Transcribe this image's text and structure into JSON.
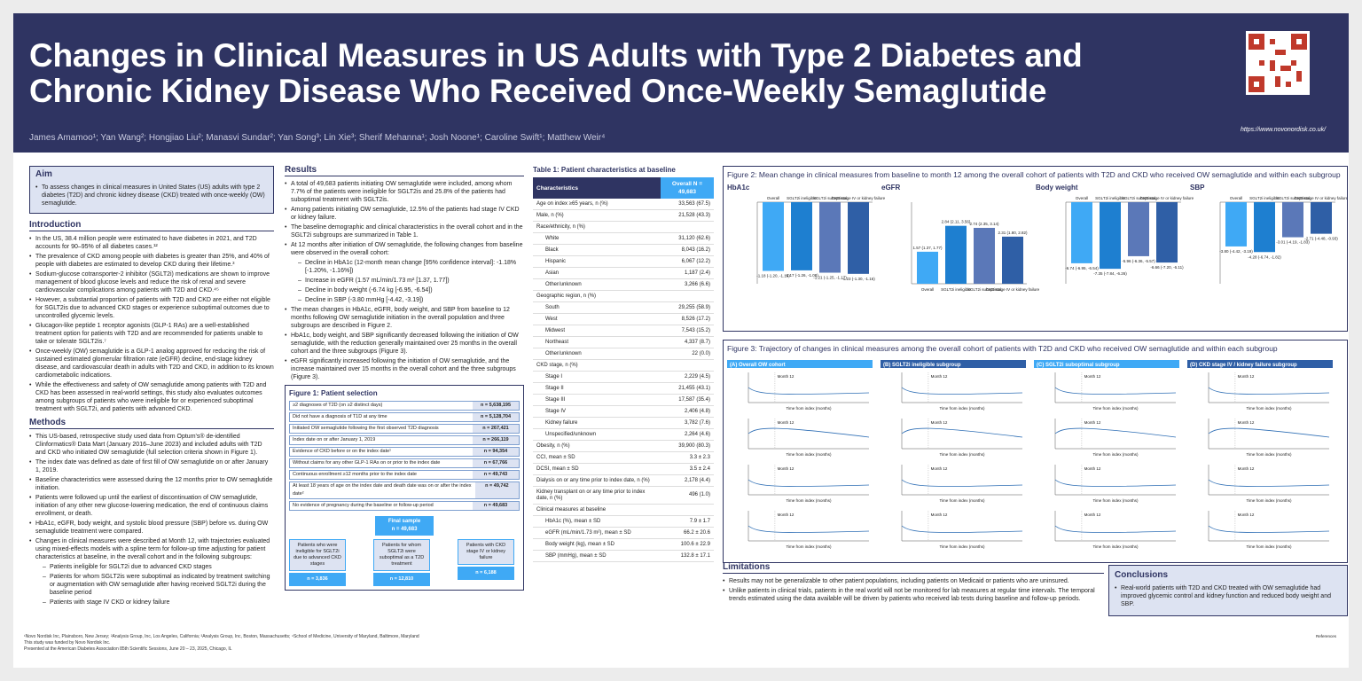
{
  "header": {
    "title": "Changes in Clinical Measures in US Adults with Type 2 Diabetes and Chronic Kidney Disease Who Received Once-Weekly Semaglutide",
    "authors": "James Amamoo¹; Yan Wang²; Hongjiao Liu²; Manasvi Sundar²; Yan Song³; Lin Xie³; Sherif Mehanna¹; Josh Noone¹; Caroline Swift¹; Matthew Weir⁴",
    "url": "https://www.novonordisk.co.uk/"
  },
  "aim": {
    "title": "Aim",
    "text": "To assess changes in clinical measures in United States (US) adults with type 2 diabetes (T2D) and chronic kidney disease (CKD) treated with once-weekly (OW) semaglutide."
  },
  "intro": {
    "title": "Introduction",
    "bullets": [
      "In the US, 38.4 million people were estimated to have diabetes in 2021, and T2D accounts for 90–95% of all diabetes cases.¹²",
      "The prevalence of CKD among people with diabetes is greater than 25%, and 40% of people with diabetes are estimated to develop CKD during their lifetime.³",
      "Sodium-glucose cotransporter-2 inhibitor (SGLT2i) medications are shown to improve management of blood glucose levels and reduce the risk of renal and severe cardiovascular complications among patients with T2D and CKD.⁴⁵",
      "However, a substantial proportion of patients with T2D and CKD are either not eligible for SGLT2is due to advanced CKD stages or experience suboptimal outcomes due to uncontrolled glycemic levels.",
      "Glucagon-like peptide 1 receptor agonists (GLP-1 RAs) are a well-established treatment option for patients with T2D and are recommended for patients unable to take or tolerate SGLT2is.⁷",
      "Once-weekly (OW) semaglutide is a GLP-1 analog approved for reducing the risk of sustained estimated glomerular filtration rate (eGFR) decline, end-stage kidney disease, and cardiovascular death in adults with T2D and CKD, in addition to its known cardiometabolic indications.",
      "While the effectiveness and safety of OW semaglutide among patients with T2D and CKD has been assessed in real-world settings, this study also evaluates outcomes among subgroups of patients who were ineligible for or experienced suboptimal treatment with SGLT2i, and patients with advanced CKD."
    ]
  },
  "methods": {
    "title": "Methods",
    "bullets": [
      "This US-based, retrospective study used data from Optum's® de-identified Clinformatics® Data Mart (January 2016–June 2023) and included adults with T2D and CKD who initiated OW semaglutide (full selection criteria shown in Figure 1).",
      "The index date was defined as date of first fill of OW semaglutide on or after January 1, 2019.",
      "Baseline characteristics were assessed during the 12 months prior to OW semaglutide initiation.",
      "Patients were followed up until the earliest of discontinuation of OW semaglutide, initiation of any other new glucose-lowering medication, the end of continuous claims enrollment, or death.",
      "HbA1c, eGFR, body weight, and systolic blood pressure (SBP) before vs. during OW semaglutide treatment were compared.",
      "Changes in clinical measures were described at Month 12, with trajectories evaluated using mixed-effects models with a spline term for follow-up time adjusting for patient characteristics at baseline, in the overall cohort and in the following subgroups:"
    ],
    "sub": [
      "Patients ineligible for SGLT2i due to advanced CKD stages",
      "Patients for whom SGLT2is were suboptimal as indicated by treatment switching or augmentation with OW semaglutide after having received SGLT2i during the baseline period",
      "Patients with stage IV CKD or kidney failure"
    ]
  },
  "results": {
    "title": "Results",
    "bullets": [
      "A total of 49,683 patients initiating OW semaglutide were included, among whom 7.7% of the patients were ineligible for SGLT2is and 25.8% of the patients had suboptimal treatment with SGLT2is.",
      "Among patients initiating OW semaglutide, 12.5% of the patients had stage IV CKD or kidney failure.",
      "The baseline demographic and clinical characteristics in the overall cohort and in the SGLT2i subgroups are summarized in Table 1.",
      "At 12 months after initiation of OW semaglutide, the following changes from baseline were observed in the overall cohort:"
    ],
    "sub": [
      "Decline in HbA1c (12-month mean change [95% confidence interval]: -1.18% [-1.20%, -1.16%])",
      "Increase in eGFR (1.57 mL/min/1.73 m² [1.37, 1.77])",
      "Decline in body weight (-6.74 kg [-6.95, -6.54])",
      "Decline in SBP (-3.80 mmHg [-4.42, -3.19])"
    ],
    "bullets2": [
      "The mean changes in HbA1c, eGFR, body weight, and SBP from baseline to 12 months following OW semaglutide initiation in the overall population and three subgroups are described in Figure 2.",
      "HbA1c, body weight, and SBP significantly decreased following the initiation of OW semaglutide, with the reduction generally maintained over 25 months in the overall cohort and the three subgroups (Figure 3).",
      "eGFR significantly increased following the initiation of OW semaglutide, and the increase maintained over 15 months in the overall cohort and the three subgroups (Figure 3)."
    ]
  },
  "fig1": {
    "title": "Figure 1: Patient selection",
    "rows": [
      [
        "≥2 diagnoses of T2D (on ≥2 distinct days)",
        "n = 5,638,195"
      ],
      [
        "Did not have a diagnosis of T1D at any time",
        "n = 5,128,704"
      ],
      [
        "Initiated OW semaglutide following the first observed T2D diagnosis",
        "n = 267,421"
      ],
      [
        "Index date on or after January 1, 2019",
        "n = 266,119"
      ],
      [
        "Evidence of CKD before or on the index date¹",
        "n = 94,354"
      ],
      [
        "Without claims for any other GLP-1 RAs on or prior to the index date",
        "n = 67,766"
      ],
      [
        "Continuous enrollment ≥12 months prior to the index date",
        "n = 49,743"
      ],
      [
        "At least 18 years of age on the index date and death date was on or after the index date²",
        "n = 49,742"
      ],
      [
        "No evidence of pregnancy during the baseline or follow-up period",
        "n = 49,683"
      ]
    ],
    "final": "Final sample",
    "final_n": "n = 49,683",
    "subs": [
      {
        "t": "Patients who were ineligible for SGLT2i due to advanced CKD stages",
        "n": "n = 3,836"
      },
      {
        "t": "Patients for whom SGLT2i were suboptimal as a T2D treatment",
        "n": "n = 12,810"
      },
      {
        "t": "Patients with CKD stage IV or kidney failure",
        "n": "n = 6,188"
      }
    ]
  },
  "table1": {
    "title": "Table 1: Patient characteristics at baseline",
    "col1": "Characteristics",
    "col2": "Overall N = 49,683",
    "rows": [
      [
        "Age on index ≥65 years, n (%)",
        "33,563 (67.5)",
        0
      ],
      [
        "Male, n (%)",
        "21,528 (43.3)",
        0
      ],
      [
        "Race/ethnicity, n (%)",
        "",
        0
      ],
      [
        "White",
        "31,120 (62.6)",
        1
      ],
      [
        "Black",
        "8,043 (16.2)",
        1
      ],
      [
        "Hispanic",
        "6,067 (12.2)",
        1
      ],
      [
        "Asian",
        "1,187 (2.4)",
        1
      ],
      [
        "Other/unknown",
        "3,266 (6.6)",
        1
      ],
      [
        "Geographic region, n (%)",
        "",
        0
      ],
      [
        "South",
        "29,255 (58.9)",
        1
      ],
      [
        "West",
        "8,526 (17.2)",
        1
      ],
      [
        "Midwest",
        "7,543 (15.2)",
        1
      ],
      [
        "Northeast",
        "4,337 (8.7)",
        1
      ],
      [
        "Other/unknown",
        "22 (0.0)",
        1
      ],
      [
        "CKD stage, n (%)",
        "",
        0
      ],
      [
        "Stage I",
        "2,229 (4.5)",
        1
      ],
      [
        "Stage II",
        "21,455 (43.1)",
        1
      ],
      [
        "Stage III",
        "17,587 (35.4)",
        1
      ],
      [
        "Stage IV",
        "2,406 (4.8)",
        1
      ],
      [
        "Kidney failure",
        "3,782 (7.6)",
        1
      ],
      [
        "Unspecified/unknown",
        "2,264 (4.6)",
        1
      ],
      [
        "Obesity, n (%)",
        "39,900 (80.3)",
        0
      ],
      [
        "CCI, mean ± SD",
        "3.3 ± 2.3",
        0
      ],
      [
        "DCSI, mean ± SD",
        "3.5 ± 2.4",
        0
      ],
      [
        "Dialysis on or any time prior to index date, n (%)",
        "2,178 (4.4)",
        0
      ],
      [
        "Kidney transplant on or any time prior to index date, n (%)",
        "496 (1.0)",
        0
      ],
      [
        "Clinical measures at baseline",
        "",
        0
      ],
      [
        "HbA1c (%), mean ± SD",
        "7.9 ± 1.7",
        1
      ],
      [
        "eGFR (mL/min/1.73 m²), mean ± SD",
        "66.2 ± 20.6",
        1
      ],
      [
        "Body weight (kg), mean ± SD",
        "100.6 ± 22.9",
        1
      ],
      [
        "SBP (mmHg), mean ± SD",
        "132.8 ± 17.1",
        1
      ]
    ]
  },
  "fig2": {
    "title": "Figure 2: Mean change in clinical measures from baseline to month 12 among the overall cohort of patients with T2D and CKD who received OW semaglutide and within each subgroup",
    "groups": [
      "Overall",
      "SGLT2i ineligible",
      "SGLT2i suboptimal",
      "CKD stage IV or kidney failure"
    ],
    "panels": [
      {
        "name": "HbA1c",
        "vals": [
          -1.18,
          -1.17,
          -1.21,
          -1.23
        ],
        "labels": [
          "-1.18 (-1.20, -1.16)",
          "-1.17 (-1.26, -1.08)",
          "-1.21 (-1.25, -1.17)",
          "-1.23 (-1.30, -1.16)"
        ],
        "ylim": [
          -1.4,
          0
        ]
      },
      {
        "name": "eGFR",
        "vals": [
          1.57,
          2.84,
          2.74,
          2.31
        ],
        "labels": [
          "1.57 (1.37, 1.77)",
          "2.84 (2.11, 3.56)",
          "2.74 (2.35, 3.14)",
          "2.31 (1.80, 2.82)"
        ],
        "ylim": [
          0,
          4
        ]
      },
      {
        "name": "Body weight",
        "vals": [
          -6.74,
          -7.35,
          -5.96,
          -6.66
        ],
        "labels": [
          "-6.74 (-6.95, -6.54)",
          "-7.35 (-7.84, -6.26)",
          "-5.96 (-6.36, -5.57)",
          "-6.66 (-7.20, -6.11)"
        ],
        "ylim": [
          -9,
          0
        ]
      },
      {
        "name": "SBP",
        "vals": [
          -3.8,
          -4.28,
          -3.01,
          -2.71
        ],
        "labels": [
          "-3.80 (-4.42, -3.19)",
          "-4.28 (-6.74, -1.82)",
          "-3.01 (-4.19, -1.83)",
          "-2.71 (-4.48, -0.93)"
        ],
        "ylim": [
          -7,
          0
        ]
      }
    ]
  },
  "fig3": {
    "title": "Figure 3: Trajectory of changes in clinical measures among the overall cohort of patients with T2D and CKD who received OW semaglutide and within each subgroup",
    "panels": [
      "(A) Overall OW cohort",
      "(B) SGLT2i ineligible subgroup",
      "(C) SGLT2i suboptimal subgroup",
      "(D) CKD stage IV / kidney failure subgroup"
    ],
    "xlabel": "Time from index (months)",
    "month": "Month 12"
  },
  "limitations": {
    "title": "Limitations",
    "bullets": [
      "Results may not be generalizable to other patient populations, including patients on Medicaid or patients who are uninsured.",
      "Unlike patients in clinical trials, patients in the real world will not be monitored for lab measures at regular time intervals. The temporal trends estimated using the data available will be driven by patients who received lab tests during baseline and follow-up periods."
    ]
  },
  "conclusions": {
    "title": "Conclusions",
    "text": "Real-world patients with T2D and CKD treated with OW semaglutide had improved glycemic control and kidney function and reduced body weight and SBP."
  },
  "footer": {
    "affil": "¹Novo Nordisk Inc, Plainsboro, New Jersey; ²Analysis Group, Inc, Los Angeles, California; ³Analysis Group, Inc, Boston, Massachusetts; ⁴School of Medicine, University of Maryland, Baltimore, Maryland",
    "funding": "This study was funded by Novo Nordisk Inc.",
    "presented": "Presented at the American Diabetes Association 85th Scientific Sessions, June 20 – 23, 2025, Chicago, IL",
    "refs_title": "References"
  },
  "colors": {
    "navy": "#2f3462",
    "blue": "#3fa9f5"
  }
}
